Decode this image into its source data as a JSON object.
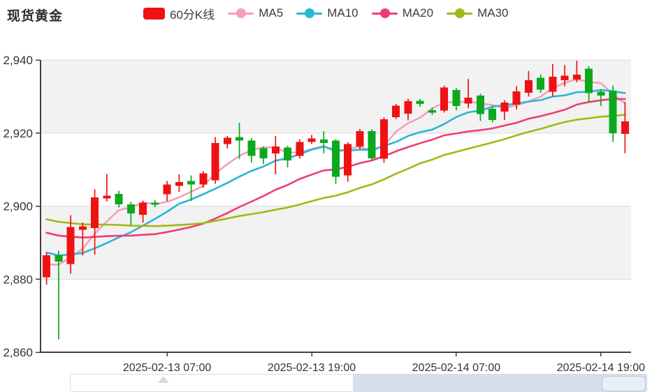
{
  "header": {
    "title": "现货黄金",
    "legend": [
      {
        "label": "60分K线",
        "marker": "rect",
        "color": "#ee1212"
      },
      {
        "label": "MA5",
        "marker": "dot-line",
        "color": "#f59fbb"
      },
      {
        "label": "MA10",
        "marker": "dot-line",
        "color": "#2bb6d2"
      },
      {
        "label": "MA20",
        "marker": "dot-line",
        "color": "#ef3d74"
      },
      {
        "label": "MA30",
        "marker": "dot-line",
        "color": "#a3b716"
      }
    ]
  },
  "chart_data": {
    "type": "candlestick",
    "title": "现货黄金",
    "period_label": "60分K线",
    "y_axis": {
      "min": 2860,
      "max": 2940,
      "ticks": [
        {
          "value": 2940,
          "label": "2,940"
        },
        {
          "value": 2920,
          "label": "2,920"
        },
        {
          "value": 2900,
          "label": "2,900"
        },
        {
          "value": 2880,
          "label": "2,880"
        },
        {
          "value": 2860,
          "label": "2,860"
        }
      ]
    },
    "x_axis": {
      "ticks": [
        {
          "index": 10,
          "label": "2025-02-13 07:00"
        },
        {
          "index": 22,
          "label": "2025-02-13 19:00"
        },
        {
          "index": 34,
          "label": "2025-02-14 07:00"
        },
        {
          "index": 46,
          "label": "2025-02-14 19:00"
        }
      ]
    },
    "candle_format": "ohlc",
    "candles": [
      [
        2880.5,
        2887.2,
        2878.5,
        2886.5
      ],
      [
        2886.5,
        2887.8,
        2863.5,
        2884.8
      ],
      [
        2884.2,
        2897.5,
        2881.5,
        2894.3
      ],
      [
        2893.5,
        2895.5,
        2886.5,
        2894.5
      ],
      [
        2894.0,
        2904.6,
        2886.7,
        2902.4
      ],
      [
        2902.1,
        2908.8,
        2901.3,
        2902.9
      ],
      [
        2903.3,
        2904.2,
        2899.6,
        2900.5
      ],
      [
        2900.5,
        2901.2,
        2894.8,
        2898.0
      ],
      [
        2897.6,
        2901.5,
        2895.5,
        2901.0
      ],
      [
        2901.0,
        2901.6,
        2899.7,
        2900.4
      ],
      [
        2903.2,
        2906.9,
        2901.4,
        2905.9
      ],
      [
        2905.5,
        2908.7,
        2903.9,
        2906.6
      ],
      [
        2906.9,
        2908.4,
        2901.4,
        2905.9
      ],
      [
        2905.9,
        2909.6,
        2905.0,
        2909.0
      ],
      [
        2907.1,
        2918.9,
        2906.1,
        2917.3
      ],
      [
        2917.0,
        2919.2,
        2915.8,
        2918.7
      ],
      [
        2918.9,
        2922.8,
        2912.9,
        2917.9
      ],
      [
        2917.9,
        2918.6,
        2911.9,
        2913.7
      ],
      [
        2915.8,
        2916.3,
        2911.5,
        2913.1
      ],
      [
        2914.4,
        2919.2,
        2908.7,
        2916.3
      ],
      [
        2916.0,
        2916.5,
        2910.6,
        2912.5
      ],
      [
        2913.7,
        2918.3,
        2913.0,
        2917.6
      ],
      [
        2917.6,
        2919.5,
        2917.0,
        2918.5
      ],
      [
        2918.2,
        2920.5,
        2914.4,
        2917.3
      ],
      [
        2917.9,
        2918.3,
        2906.1,
        2908.0
      ],
      [
        2908.4,
        2917.5,
        2906.7,
        2917.0
      ],
      [
        2916.3,
        2921.1,
        2915.6,
        2920.5
      ],
      [
        2920.5,
        2921.0,
        2912.5,
        2913.1
      ],
      [
        2913.0,
        2924.3,
        2911.8,
        2923.8
      ],
      [
        2924.3,
        2928.0,
        2923.8,
        2927.5
      ],
      [
        2925.3,
        2929.4,
        2923.5,
        2928.7
      ],
      [
        2928.8,
        2929.4,
        2927.2,
        2928.0
      ],
      [
        2926.3,
        2927.0,
        2925.0,
        2925.6
      ],
      [
        2926.2,
        2933.0,
        2925.6,
        2932.5
      ],
      [
        2931.8,
        2932.3,
        2926.2,
        2927.4
      ],
      [
        2928.1,
        2934.8,
        2926.8,
        2929.7
      ],
      [
        2930.3,
        2930.8,
        2923.3,
        2925.2
      ],
      [
        2926.6,
        2927.2,
        2922.9,
        2923.6
      ],
      [
        2925.9,
        2929.0,
        2923.6,
        2928.4
      ],
      [
        2927.8,
        2932.8,
        2926.5,
        2931.4
      ],
      [
        2931.0,
        2937.0,
        2930.0,
        2934.5
      ],
      [
        2935.1,
        2936.0,
        2931.0,
        2931.9
      ],
      [
        2931.3,
        2938.9,
        2930.0,
        2935.4
      ],
      [
        2934.5,
        2938.6,
        2932.8,
        2935.7
      ],
      [
        2934.7,
        2939.8,
        2933.9,
        2936.0
      ],
      [
        2937.6,
        2938.3,
        2928.4,
        2930.9
      ],
      [
        2931.3,
        2932.0,
        2927.4,
        2930.3
      ],
      [
        2931.5,
        2933.0,
        2917.6,
        2920.0
      ],
      [
        2919.8,
        2928.5,
        2914.5,
        2923.2
      ]
    ],
    "moving_averages": [
      {
        "name": "MA5",
        "window": 5,
        "color": "#f59fbb"
      },
      {
        "name": "MA10",
        "window": 10,
        "color": "#2bb6d2"
      },
      {
        "name": "MA20",
        "window": 20,
        "color": "#ef3d74"
      },
      {
        "name": "MA30",
        "window": 30,
        "color": "#a3b716"
      }
    ],
    "pre_window_closes": [
      2905,
      2904.8,
      2904.5,
      2904.2,
      2903.8,
      2903.5,
      2903.2,
      2903,
      2902.8,
      2902.5,
      2900.5,
      2900,
      2899.5,
      2899,
      2898.5,
      2898,
      2897.5,
      2897,
      2896.5,
      2894.5,
      2893,
      2891.5,
      2890.5,
      2889.5,
      2888.5,
      2885,
      2884,
      2883,
      2881.6
    ],
    "colors": {
      "bull": "#ee1212",
      "bear": "#0ca91f",
      "band": "#f2f2f2",
      "grid_line": "#dcdcdc",
      "axis_line": "#3f3f3f",
      "axis_label": "#333333"
    },
    "layout_hints": {
      "grid_on": true,
      "split_area": "alternating",
      "legend_position": "top"
    }
  }
}
